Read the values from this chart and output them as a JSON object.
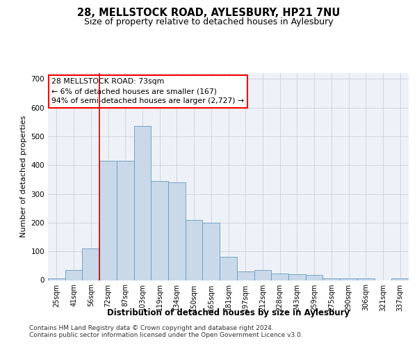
{
  "title1": "28, MELLSTOCK ROAD, AYLESBURY, HP21 7NU",
  "title2": "Size of property relative to detached houses in Aylesbury",
  "xlabel": "Distribution of detached houses by size in Aylesbury",
  "ylabel": "Number of detached properties",
  "categories": [
    "25sqm",
    "41sqm",
    "56sqm",
    "72sqm",
    "87sqm",
    "103sqm",
    "119sqm",
    "134sqm",
    "150sqm",
    "165sqm",
    "181sqm",
    "197sqm",
    "212sqm",
    "228sqm",
    "243sqm",
    "259sqm",
    "275sqm",
    "290sqm",
    "306sqm",
    "321sqm",
    "337sqm"
  ],
  "values": [
    5,
    35,
    110,
    415,
    415,
    535,
    345,
    340,
    210,
    200,
    80,
    30,
    35,
    22,
    20,
    18,
    5,
    5,
    5,
    0,
    5
  ],
  "bar_color": "#c9d9ea",
  "bar_edge_color": "#6699bb",
  "bg_color": "#eef2f8",
  "grid_color": "#ccccdd",
  "annotation_title": "28 MELLSTOCK ROAD: 73sqm",
  "annotation_line1": "← 6% of detached houses are smaller (167)",
  "annotation_line2": "94% of semi-detached houses are larger (2,727) →",
  "vline_color": "#cc0000",
  "vline_x": 2.5,
  "ylim": [
    0,
    720
  ],
  "yticks": [
    0,
    100,
    200,
    300,
    400,
    500,
    600,
    700
  ],
  "footnote1": "Contains HM Land Registry data © Crown copyright and database right 2024.",
  "footnote2": "Contains public sector information licensed under the Open Government Licence v3.0."
}
